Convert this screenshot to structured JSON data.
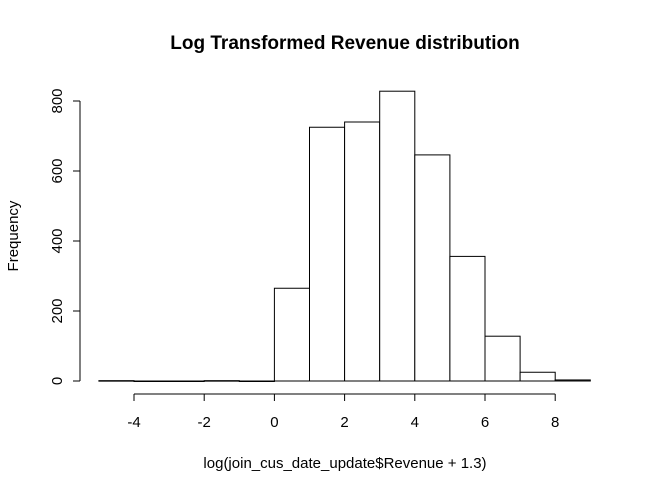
{
  "chart_data": {
    "type": "bar",
    "title": "Log Transformed Revenue distribution",
    "xlabel": "log(join_cus_date_update$Revenue + 1.3)",
    "ylabel": "Frequency",
    "bins": [
      {
        "x0": -5,
        "x1": -4,
        "count": 1
      },
      {
        "x0": -4,
        "x1": -3,
        "count": 0
      },
      {
        "x0": -3,
        "x1": -2,
        "count": 0
      },
      {
        "x0": -2,
        "x1": -1,
        "count": 1
      },
      {
        "x0": -1,
        "x1": 0,
        "count": 0
      },
      {
        "x0": 0,
        "x1": 1,
        "count": 265
      },
      {
        "x0": 1,
        "x1": 2,
        "count": 725
      },
      {
        "x0": 2,
        "x1": 3,
        "count": 740
      },
      {
        "x0": 3,
        "x1": 4,
        "count": 828
      },
      {
        "x0": 4,
        "x1": 5,
        "count": 646
      },
      {
        "x0": 5,
        "x1": 6,
        "count": 356
      },
      {
        "x0": 6,
        "x1": 7,
        "count": 128
      },
      {
        "x0": 7,
        "x1": 8,
        "count": 25
      },
      {
        "x0": 8,
        "x1": 9,
        "count": 3
      }
    ],
    "x_ticks": [
      -4,
      -2,
      0,
      2,
      4,
      6,
      8
    ],
    "y_ticks": [
      0,
      200,
      400,
      600,
      800
    ],
    "xlim": [
      -5,
      9
    ],
    "ylim": [
      0,
      828
    ],
    "grid": false,
    "legend": false
  }
}
